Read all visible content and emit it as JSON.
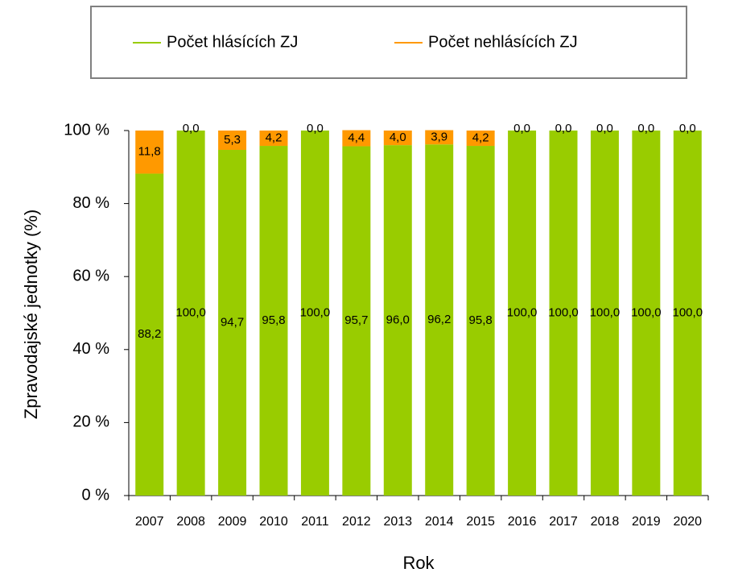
{
  "chart_data": {
    "type": "stacked-bar",
    "categories": [
      "2007",
      "2008",
      "2009",
      "2010",
      "2011",
      "2012",
      "2013",
      "2014",
      "2015",
      "2016",
      "2017",
      "2018",
      "2019",
      "2020"
    ],
    "series": [
      {
        "name": "Počet hlásících ZJ",
        "color": "#99cc00",
        "values": [
          88.2,
          100,
          94.7,
          95.8,
          100,
          95.7,
          96,
          96.2,
          95.8,
          100,
          100,
          100,
          100,
          100
        ],
        "value_labels": [
          "88,2",
          "100,0",
          "94,7",
          "95,8",
          "100,0",
          "95,7",
          "96,0",
          "96,2",
          "95,8",
          "100,0",
          "100,0",
          "100,0",
          "100,0",
          "100,0"
        ]
      },
      {
        "name": "Počet nehlásících ZJ",
        "color": "#ff9900",
        "values": [
          11.8,
          0,
          5.3,
          4.2,
          0,
          4.4,
          4,
          3.9,
          4.2,
          0,
          0,
          0,
          0,
          0
        ],
        "value_labels": [
          "11,8",
          "0,0",
          "5,3",
          "4,2",
          "0,0",
          "4,4",
          "4,0",
          "3,9",
          "4,2",
          "0,0",
          "0,0",
          "0,0",
          "0,0",
          "0,0"
        ]
      }
    ],
    "y_label": "Zpravodajské jednotky (%)",
    "x_label": "Rok",
    "ylim": [
      0,
      100
    ],
    "yticks": [
      {
        "value": 0,
        "label": "0 %"
      },
      {
        "value": 20,
        "label": "20 %"
      },
      {
        "value": 40,
        "label": "40 %"
      },
      {
        "value": 60,
        "label": "60 %"
      },
      {
        "value": 80,
        "label": "80 %"
      },
      {
        "value": 100,
        "label": "100 %"
      }
    ],
    "legend": "top"
  }
}
